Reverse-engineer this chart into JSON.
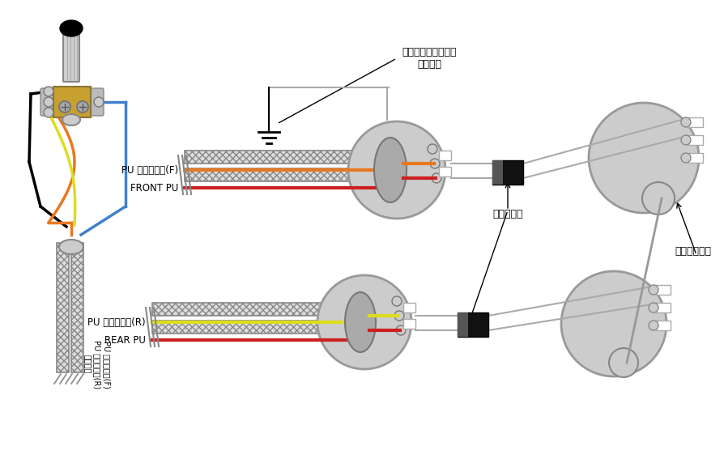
{
  "bg_color": "#ffffff",
  "texts": {
    "ground_label": "テールピースからの\nアース線",
    "condenser_label": "コンデンサ",
    "suzu_label": "スズメッキ線",
    "front_selector": "PU セレクター(F)",
    "front_pu": "FRONT PU",
    "rear_selector": "PU セレクター(R)",
    "rear_pu": "REAR PU",
    "switch_label1": "シャフト",
    "switch_label2": "PU セレクター(R)",
    "switch_label3": "PU セレクター(F)"
  },
  "colors": {
    "gray": "#aaaaaa",
    "dark_gray": "#888888",
    "light_gray": "#cccccc",
    "black": "#000000",
    "white": "#ffffff",
    "orange": "#e87820",
    "red": "#cc2020",
    "yellow": "#dddd20",
    "blue": "#4080cc",
    "gold": "#c8a030",
    "hatch_fill": "#dddddd",
    "wire_gray": "#aaaaaa",
    "dark": "#111111"
  }
}
